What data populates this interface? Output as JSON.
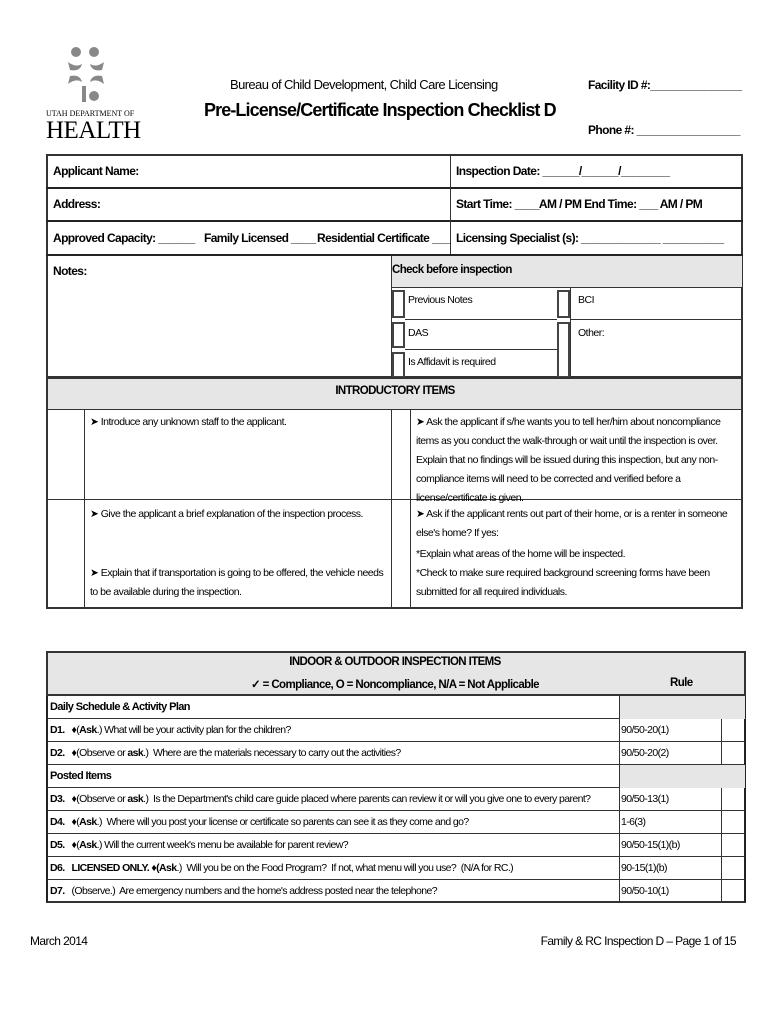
{
  "header": {
    "logo": {
      "line1": "UTAH DEPARTMENT OF",
      "line2": "HEALTH"
    },
    "bureau": "Bureau of Child Development, Child Care Licensing",
    "title": "Pre-License/Certificate Inspection Checklist D",
    "facility_id": "Facility ID #:_______________",
    "phone": "Phone #: _________________"
  },
  "info": {
    "applicant_name": "Applicant Name:",
    "inspection_date": "Inspection Date: ______/______/________",
    "address": "Address:",
    "time": "Start Time: ____AM / PM  End Time: ___ AM / PM",
    "approved_capacity": "Approved Capacity: ______",
    "family_licensed": "Family Licensed ____",
    "residential_certificate": "Residential Certificate ___",
    "licensing_specialist": "Licensing Specialist (s): _____________ __________",
    "notes": "Notes:"
  },
  "check_before": {
    "title": "Check before inspection",
    "items": [
      "Previous Notes",
      "BCI",
      "DAS",
      "Other:",
      "Is Affidavit is required"
    ]
  },
  "intro": {
    "title": "INTRODUCTORY ITEMS",
    "left1": "➤ Introduce any unknown staff to the applicant.",
    "right1": "➤ Ask the applicant if s/he wants you to tell her/him about noncompliance items as you conduct the walk-through or wait until the inspection is over. Explain that no findings will be issued during this inspection, but any non-compliance items will need to be corrected and verified before a license/certificate is given.",
    "left2a": "➤ Give the applicant a brief explanation of the inspection process.",
    "left2b": "➤ Explain that if transportation is going to be offered, the vehicle needs to be available during the inspection.",
    "right2a": "➤ Ask if the applicant rents out part of their home, or is a renter in someone else's home? If yes:",
    "right2b": "*Explain what areas of the home will be inspected.",
    "right2c": "*Check to make sure required background screening forms have been submitted for all required individuals."
  },
  "inspection": {
    "title": "INDOOR & OUTDOOR INSPECTION ITEMS",
    "legend": "✓ = Compliance, O = Noncompliance, N/A = Not Applicable",
    "rule_header": "Rule",
    "sections": [
      {
        "title": "Daily Schedule & Activity Plan",
        "rows": [
          {
            "id": "D1.",
            "prefix": "♦(",
            "bold": "Ask",
            "text": ".) What will be your activity plan for the children?",
            "rule": "90/50-20(1)"
          },
          {
            "id": "D2.",
            "prefix": "♦(Observe or ",
            "bold": "ask",
            "text": ".)  Where are the materials necessary to carry out the activities?",
            "rule": "90/50-20(2)"
          }
        ]
      },
      {
        "title": "Posted Items",
        "rows": [
          {
            "id": "D3.",
            "prefix": "♦(Observe or ",
            "bold": "ask",
            "text": ".)  Is the Department's child care guide placed where parents can review it or will you give one to every parent?",
            "rule": "90/50-13(1)"
          },
          {
            "id": "D4.",
            "prefix": "♦(",
            "bold": "Ask",
            "text": ".)  Where will you post your license or certificate so parents can see it as they come and go?",
            "rule": "1-6(3)"
          },
          {
            "id": "D5.",
            "prefix": "♦(",
            "bold": "Ask",
            "text": ".) Will the current week's menu be available for parent review?",
            "rule": "90/50-15(1)(b)"
          },
          {
            "id": "D6.",
            "prefix": "LICENSED ONLY.  ♦(",
            "bold": "Ask",
            "text": ".)  Will you be on the Food Program?  If not, what menu will you use?  (N/A for RC.)",
            "rule": "90-15(1)(b)"
          },
          {
            "id": "D7.",
            "prefix": "(Observe.)",
            "bold": "",
            "text": "  Are emergency numbers and the home's address posted near the telephone?",
            "rule": "90/50-10(1)"
          }
        ]
      }
    ]
  },
  "footer": {
    "left": "March 2014",
    "right": "Family & RC Inspection D – Page 1 of 15"
  }
}
